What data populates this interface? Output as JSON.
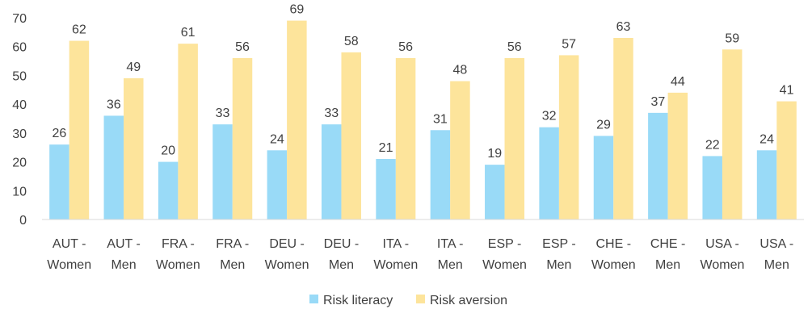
{
  "chart_data": {
    "type": "bar",
    "title": "",
    "xlabel": "",
    "ylabel": "",
    "ylim": [
      0,
      70
    ],
    "yticks": [
      0,
      10,
      20,
      30,
      40,
      50,
      60,
      70
    ],
    "grid": false,
    "legend_position": "bottom",
    "categories": [
      [
        "AUT -",
        "Women"
      ],
      [
        "AUT -",
        "Men"
      ],
      [
        "FRA -",
        "Women"
      ],
      [
        "FRA -",
        "Men"
      ],
      [
        "DEU -",
        "Women"
      ],
      [
        "DEU -",
        "Men"
      ],
      [
        "ITA -",
        "Women"
      ],
      [
        "ITA -",
        "Men"
      ],
      [
        "ESP -",
        "Women"
      ],
      [
        "ESP -",
        "Men"
      ],
      [
        "CHE -",
        "Women"
      ],
      [
        "CHE -",
        "Men"
      ],
      [
        "USA -",
        "Women"
      ],
      [
        "USA -",
        "Men"
      ]
    ],
    "series": [
      {
        "name": "Risk literacy",
        "color": "#99daf7",
        "values": [
          26,
          36,
          20,
          33,
          24,
          33,
          21,
          31,
          19,
          32,
          29,
          37,
          22,
          24
        ]
      },
      {
        "name": "Risk aversion",
        "color": "#fde49b",
        "values": [
          62,
          49,
          61,
          56,
          69,
          58,
          56,
          48,
          56,
          57,
          63,
          44,
          59,
          41
        ]
      }
    ]
  }
}
